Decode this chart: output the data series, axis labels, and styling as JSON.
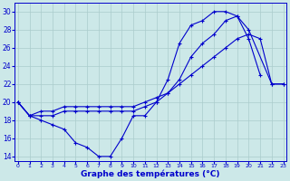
{
  "title": "Graphe des températures (°C)",
  "bg_color": "#cce8e8",
  "grid_color": "#aacccc",
  "line_color": "#0000cc",
  "xlim": [
    -0.3,
    23.3
  ],
  "ylim": [
    13.5,
    31.0
  ],
  "xticks": [
    0,
    1,
    2,
    3,
    4,
    5,
    6,
    7,
    8,
    9,
    10,
    11,
    12,
    13,
    14,
    15,
    16,
    17,
    18,
    19,
    20,
    21,
    22,
    23
  ],
  "yticks": [
    14,
    16,
    18,
    20,
    22,
    24,
    26,
    28,
    30
  ],
  "s1x": [
    0,
    1,
    2,
    3,
    4,
    5,
    6,
    7,
    8,
    9,
    10,
    11,
    12,
    13,
    14,
    15,
    16,
    17,
    18,
    19,
    20,
    21
  ],
  "s1y": [
    20,
    18.5,
    18,
    17.5,
    17,
    15.5,
    15,
    14,
    14,
    16,
    18.5,
    18.5,
    20,
    22.5,
    26.5,
    28.5,
    29,
    30,
    30,
    29.5,
    27,
    23
  ],
  "s2x": [
    0,
    1,
    2,
    3,
    4,
    5,
    6,
    7,
    8,
    9,
    10,
    11,
    12,
    13,
    14,
    15,
    16,
    17,
    18,
    19,
    20,
    21,
    22,
    23
  ],
  "s2y": [
    20,
    18.5,
    19,
    19,
    19.5,
    19.5,
    19.5,
    19.5,
    19.5,
    19.5,
    19.5,
    20,
    20.5,
    21,
    22,
    23,
    24,
    25,
    26,
    27,
    27.5,
    27,
    22,
    22
  ],
  "s3x": [
    0,
    1,
    2,
    3,
    4,
    5,
    6,
    7,
    8,
    9,
    10,
    11,
    12,
    13,
    14,
    15,
    16,
    17,
    18,
    19,
    20,
    22,
    23
  ],
  "s3y": [
    20,
    18.5,
    18.5,
    18.5,
    19,
    19,
    19,
    19,
    19,
    19,
    19,
    19.5,
    20,
    21,
    22.5,
    25,
    26.5,
    27.5,
    29,
    29.5,
    28,
    22,
    22
  ]
}
